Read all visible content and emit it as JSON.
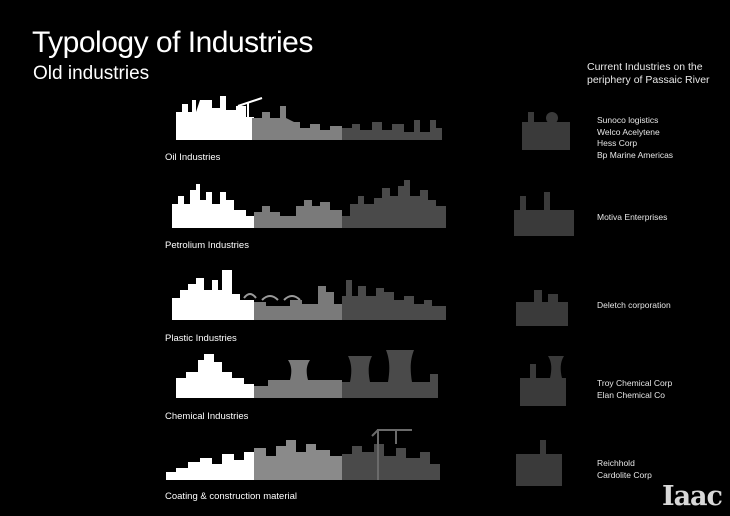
{
  "header": {
    "title": "Typology of Industries",
    "subtitle": "Old industries",
    "current_label_line1": "Current Industries on the",
    "current_label_line2": "periphery of Passaic River"
  },
  "rows": [
    {
      "label": "Oil Industries",
      "companies": [
        "Sunoco logistics",
        "Welco Acelytene",
        "Hess Corp",
        "Bp Marine Americas"
      ]
    },
    {
      "label": "Petrolium Industries",
      "companies": [
        "Motiva Enterprises"
      ]
    },
    {
      "label": "Plastic Industries",
      "companies": [
        "Deletch corporation"
      ]
    },
    {
      "label": "Chemical Industries",
      "companies": [
        "Troy Chemical Corp",
        "Elan Chemical Co"
      ]
    },
    {
      "label": "Coating & construction material",
      "companies": [
        "Reichhold",
        "Cardolite Corp"
      ]
    }
  ],
  "logo": "Iaac",
  "colors": {
    "background": "#000000",
    "skyline_light": "#ffffff",
    "skyline_mid": "#7a7a7a",
    "skyline_dark": "#4a4a4a",
    "icon": "#3a3a3a"
  }
}
